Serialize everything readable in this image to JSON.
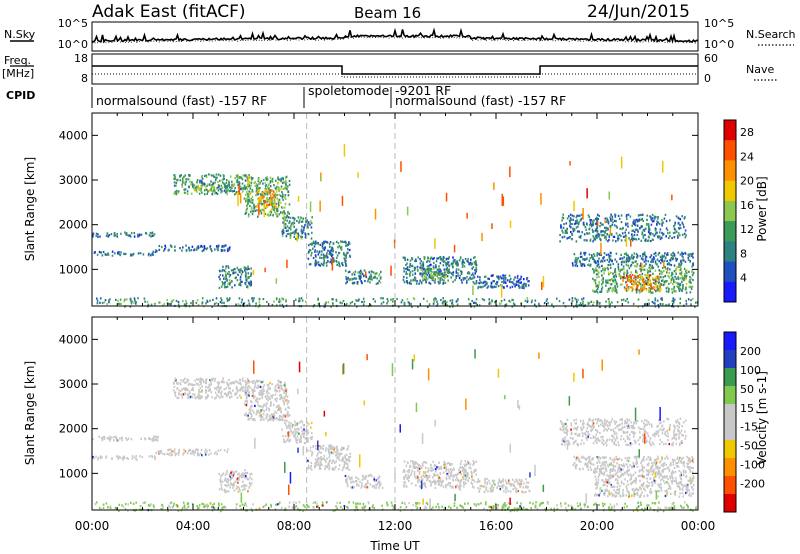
{
  "header": {
    "station": "Adak East (fitACF)",
    "beam": "Beam 16",
    "date": "24/Jun/2015"
  },
  "noise_panel": {
    "left_label": "N.Sky",
    "left_ticks": [
      "10^5",
      "10^0"
    ],
    "right_label": "N.Search",
    "right_ticks": [
      "10^5",
      "10^0"
    ]
  },
  "freq_panel": {
    "left_label_top": "Freq.",
    "left_label_bottom": "[MHz]",
    "left_ticks": [
      "18",
      "8"
    ],
    "right_label": "Nave",
    "right_ticks": [
      "60",
      "0"
    ]
  },
  "cpid_panel": {
    "label": "CPID",
    "segments": [
      {
        "start_hour": 0,
        "end_hour": 8.5,
        "text": "normalsound (fast) -157 RF"
      },
      {
        "start_hour": 8.5,
        "end_hour": 12,
        "text": "spoletomode"
      },
      {
        "start_hour": 12,
        "end_hour": 24,
        "text": "-9201 RF"
      },
      {
        "start_hour": 12,
        "end_hour": 24,
        "text": "normalsound (fast) -157 RF"
      }
    ]
  },
  "colors": {
    "power": [
      "#1a1aff",
      "#2050c0",
      "#2f8080",
      "#3c9a5a",
      "#8cc850",
      "#f0c800",
      "#ff9000",
      "#ff5000",
      "#e00000"
    ],
    "velocity": [
      "#1a1aff",
      "#2040c0",
      "#3a9a50",
      "#80c850",
      "#c8c8c8",
      "#c8c8c8",
      "#f0c800",
      "#ff9000",
      "#ff5000",
      "#e00000"
    ]
  },
  "chart_data": [
    {
      "type": "heatmap",
      "title": "",
      "quantity": "Power",
      "ylabel": "Slant Range [km]",
      "xlabel": "Time UT",
      "x_range_hours": [
        0,
        24
      ],
      "ylim": [
        180,
        4500
      ],
      "x_tick_labels": [
        "00:00",
        "04:00",
        "08:00",
        "12:00",
        "16:00",
        "20:00",
        "00:00"
      ],
      "y_tick_labels": [
        "1000",
        "2000",
        "3000",
        "4000"
      ],
      "y_ticks": [
        1000,
        2000,
        3000,
        4000
      ],
      "colorbar": {
        "label": "Power [dB]",
        "ticks": [
          "4",
          "8",
          "12",
          "16",
          "20",
          "24",
          "28"
        ],
        "range": [
          0,
          30
        ]
      },
      "regions": [
        {
          "t0": 0.0,
          "t1": 2.6,
          "r0": 1750,
          "r1": 1850,
          "value": 8
        },
        {
          "t0": 0.0,
          "t1": 2.5,
          "r0": 1330,
          "r1": 1420,
          "value": 7
        },
        {
          "t0": 2.5,
          "t1": 5.5,
          "r0": 1430,
          "r1": 1560,
          "value": 7
        },
        {
          "t0": 3.2,
          "t1": 6.2,
          "r0": 2700,
          "r1": 3150,
          "value": 11
        },
        {
          "t0": 4.0,
          "t1": 4.8,
          "r0": 2750,
          "r1": 2900,
          "value": 15
        },
        {
          "t0": 5.0,
          "t1": 6.3,
          "r0": 600,
          "r1": 1100,
          "value": 9
        },
        {
          "t0": 6.0,
          "t1": 7.8,
          "r0": 2200,
          "r1": 3100,
          "value": 12
        },
        {
          "t0": 6.5,
          "t1": 7.3,
          "r0": 2400,
          "r1": 2800,
          "value": 20
        },
        {
          "t0": 7.5,
          "t1": 8.7,
          "r0": 1700,
          "r1": 2200,
          "value": 9
        },
        {
          "t0": 8.5,
          "t1": 10.2,
          "r0": 1100,
          "r1": 1650,
          "value": 8
        },
        {
          "t0": 10.0,
          "t1": 11.5,
          "r0": 700,
          "r1": 1000,
          "value": 9
        },
        {
          "t0": 12.3,
          "t1": 15.2,
          "r0": 700,
          "r1": 1300,
          "value": 8
        },
        {
          "t0": 13.0,
          "t1": 14.0,
          "r0": 800,
          "r1": 1050,
          "value": 13
        },
        {
          "t0": 15.2,
          "t1": 17.3,
          "r0": 600,
          "r1": 900,
          "value": 6
        },
        {
          "t0": 18.5,
          "t1": 23.5,
          "r0": 1650,
          "r1": 2250,
          "value": 8
        },
        {
          "t0": 19.0,
          "t1": 23.8,
          "r0": 1100,
          "r1": 1400,
          "value": 8
        },
        {
          "t0": 19.8,
          "t1": 23.8,
          "r0": 500,
          "r1": 1100,
          "value": 12
        },
        {
          "t0": 21.0,
          "t1": 22.5,
          "r0": 550,
          "r1": 900,
          "value": 22
        },
        {
          "t0": 0.0,
          "t1": 24.0,
          "r0": 180,
          "r1": 380,
          "value": 10
        }
      ]
    },
    {
      "type": "heatmap",
      "title": "",
      "quantity": "Velocity",
      "ylabel": "Slant Range [km]",
      "xlabel": "Time UT",
      "x_range_hours": [
        0,
        24
      ],
      "ylim": [
        180,
        4500
      ],
      "x_tick_labels": [
        "00:00",
        "04:00",
        "08:00",
        "12:00",
        "16:00",
        "20:00",
        "00:00"
      ],
      "y_tick_labels": [
        "1000",
        "2000",
        "3000",
        "4000"
      ],
      "y_ticks": [
        1000,
        2000,
        3000,
        4000
      ],
      "colorbar": {
        "label": "Velocity [m s-1]",
        "ticks": [
          "200",
          "100",
          "50",
          "15",
          "-15",
          "-50",
          "-100",
          "-200"
        ],
        "range": [
          -250,
          250
        ]
      },
      "regions": [
        {
          "t0": 0.0,
          "t1": 2.6,
          "r0": 1750,
          "r1": 1850,
          "value": 0
        },
        {
          "t0": 0.0,
          "t1": 2.5,
          "r0": 1330,
          "r1": 1420,
          "value": 0
        },
        {
          "t0": 2.5,
          "t1": 5.5,
          "r0": 1430,
          "r1": 1560,
          "value": 0
        },
        {
          "t0": 3.2,
          "t1": 6.2,
          "r0": 2700,
          "r1": 3150,
          "value": 0
        },
        {
          "t0": 5.0,
          "t1": 6.3,
          "r0": 600,
          "r1": 1100,
          "value": 0
        },
        {
          "t0": 6.0,
          "t1": 7.8,
          "r0": 2200,
          "r1": 3100,
          "value": 0
        },
        {
          "t0": 7.5,
          "t1": 8.7,
          "r0": 1700,
          "r1": 2200,
          "value": -30
        },
        {
          "t0": 8.5,
          "t1": 10.2,
          "r0": 1100,
          "r1": 1650,
          "value": 0
        },
        {
          "t0": 10.0,
          "t1": 11.5,
          "r0": 700,
          "r1": 1000,
          "value": 0
        },
        {
          "t0": 12.3,
          "t1": 15.2,
          "r0": 700,
          "r1": 1300,
          "value": 0
        },
        {
          "t0": 15.2,
          "t1": 17.3,
          "r0": 600,
          "r1": 900,
          "value": 0
        },
        {
          "t0": 18.5,
          "t1": 23.5,
          "r0": 1650,
          "r1": 2250,
          "value": 0
        },
        {
          "t0": 19.0,
          "t1": 23.8,
          "r0": 1100,
          "r1": 1400,
          "value": 0
        },
        {
          "t0": 19.8,
          "t1": 23.8,
          "r0": 500,
          "r1": 1100,
          "value": 0
        },
        {
          "t0": 0.0,
          "t1": 24.0,
          "r0": 180,
          "r1": 380,
          "value": -60
        }
      ]
    }
  ]
}
